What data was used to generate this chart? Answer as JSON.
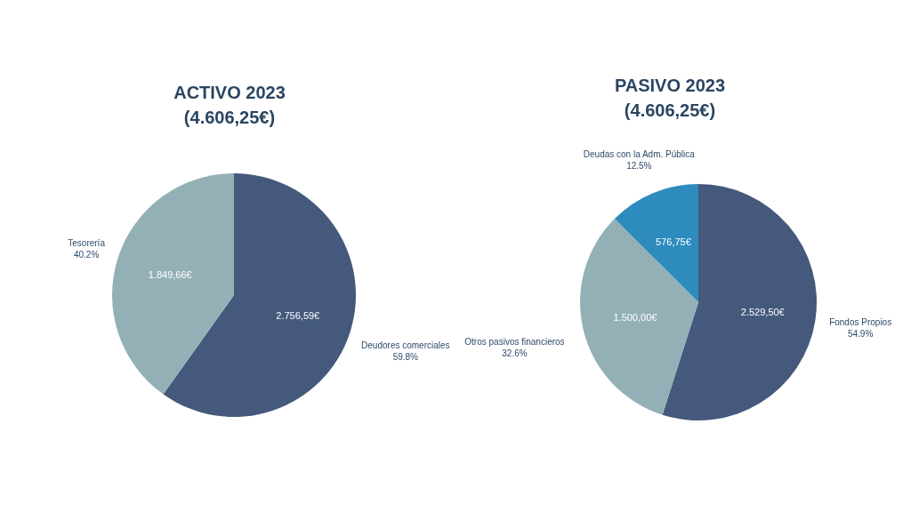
{
  "chart_data": [
    {
      "type": "pie",
      "title": "ACTIVO 2023",
      "subtitle": "(4.606,25€)",
      "categories": [
        "Deudores comerciales",
        "Tesorería"
      ],
      "values": [
        2756.59,
        1849.66
      ],
      "colors": [
        "#44597c",
        "#94b0b7"
      ],
      "value_labels": [
        "2.756,59€",
        "1.849,66€"
      ],
      "annotations": [
        "59.8%",
        "40.2%"
      ],
      "legend": false
    },
    {
      "type": "pie",
      "title": "PASIVO 2023",
      "subtitle": "(4.606,25€)",
      "categories": [
        "Fondos Propios",
        "Otros pasivos financieros",
        "Deudas con la Adm. Pública"
      ],
      "values": [
        2529.5,
        1500.0,
        576.75
      ],
      "colors": [
        "#44597c",
        "#94b0b7",
        "#2e8bbd"
      ],
      "value_labels": [
        "2.529,50€",
        "1.500,00€",
        "576,75€"
      ],
      "annotations": [
        "54.9%",
        "32.6%",
        "12.5%"
      ],
      "legend": false
    }
  ]
}
